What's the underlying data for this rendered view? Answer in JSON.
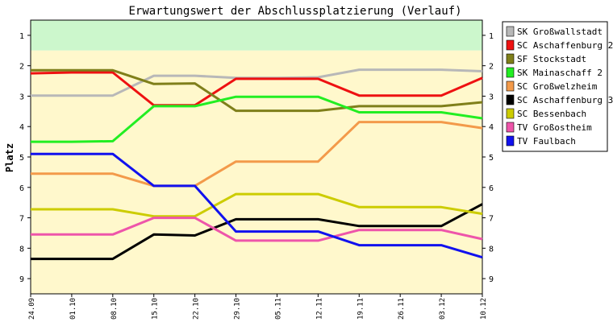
{
  "chart_data": {
    "type": "line",
    "title": "Erwartungswert der Abschlussplatzierung (Verlauf)",
    "ylabel": "Platz",
    "xlabel": "",
    "ylim": [
      9.5,
      0.5
    ],
    "y_ticks": [
      1,
      2,
      3,
      4,
      5,
      6,
      7,
      8,
      9
    ],
    "categories": [
      "24.09",
      "01.10",
      "08.10",
      "15.10",
      "22.10",
      "29.10",
      "05.11",
      "12.11",
      "19.11",
      "26.11",
      "03.12",
      "10.12"
    ],
    "bands": [
      {
        "from": 0.5,
        "to": 1.5,
        "color": "#ccf7cc"
      },
      {
        "from": 1.5,
        "to": 9.5,
        "color": "#fff8cc"
      }
    ],
    "series": [
      {
        "name": "SK Großwallstadt",
        "color": "#b8b8b8",
        "values": [
          2.98,
          2.98,
          2.98,
          2.33,
          2.33,
          2.4,
          2.4,
          2.38,
          2.13,
          2.13,
          2.13,
          2.18
        ]
      },
      {
        "name": "SC Aschaffenburg 2",
        "color": "#ee1111",
        "values": [
          2.25,
          2.22,
          2.22,
          3.3,
          3.3,
          2.43,
          2.43,
          2.43,
          2.98,
          2.98,
          2.98,
          2.4
        ]
      },
      {
        "name": "SF Stockstadt",
        "color": "#7f7f1a",
        "values": [
          2.15,
          2.15,
          2.15,
          2.6,
          2.58,
          3.48,
          3.48,
          3.48,
          3.33,
          3.33,
          3.33,
          3.2
        ]
      },
      {
        "name": "SK Mainaschaff 2",
        "color": "#22ee22",
        "values": [
          4.5,
          4.5,
          4.48,
          3.33,
          3.33,
          3.02,
          3.02,
          3.02,
          3.53,
          3.53,
          3.53,
          3.73
        ]
      },
      {
        "name": "SC Großwelzheim",
        "color": "#f39a4a",
        "values": [
          5.55,
          5.55,
          5.55,
          5.95,
          5.95,
          5.15,
          5.15,
          5.15,
          3.85,
          3.85,
          3.85,
          4.05
        ]
      },
      {
        "name": "SC Aschaffenburg 3",
        "color": "#000000",
        "values": [
          8.35,
          8.35,
          8.35,
          7.55,
          7.58,
          7.05,
          7.05,
          7.05,
          7.27,
          7.27,
          7.27,
          6.55
        ]
      },
      {
        "name": "SC Bessenbach",
        "color": "#cccc00",
        "values": [
          6.72,
          6.72,
          6.72,
          6.95,
          6.95,
          6.22,
          6.22,
          6.22,
          6.65,
          6.65,
          6.65,
          6.87
        ]
      },
      {
        "name": "TV Großostheim",
        "color": "#ee55aa",
        "values": [
          7.55,
          7.55,
          7.55,
          7.0,
          7.0,
          7.75,
          7.75,
          7.75,
          7.4,
          7.4,
          7.4,
          7.7
        ]
      },
      {
        "name": "TV Faulbach",
        "color": "#1111ee",
        "values": [
          4.9,
          4.9,
          4.9,
          5.95,
          5.95,
          7.45,
          7.45,
          7.45,
          7.9,
          7.9,
          7.9,
          8.3
        ]
      }
    ],
    "grid": false,
    "legend_position": "right"
  }
}
